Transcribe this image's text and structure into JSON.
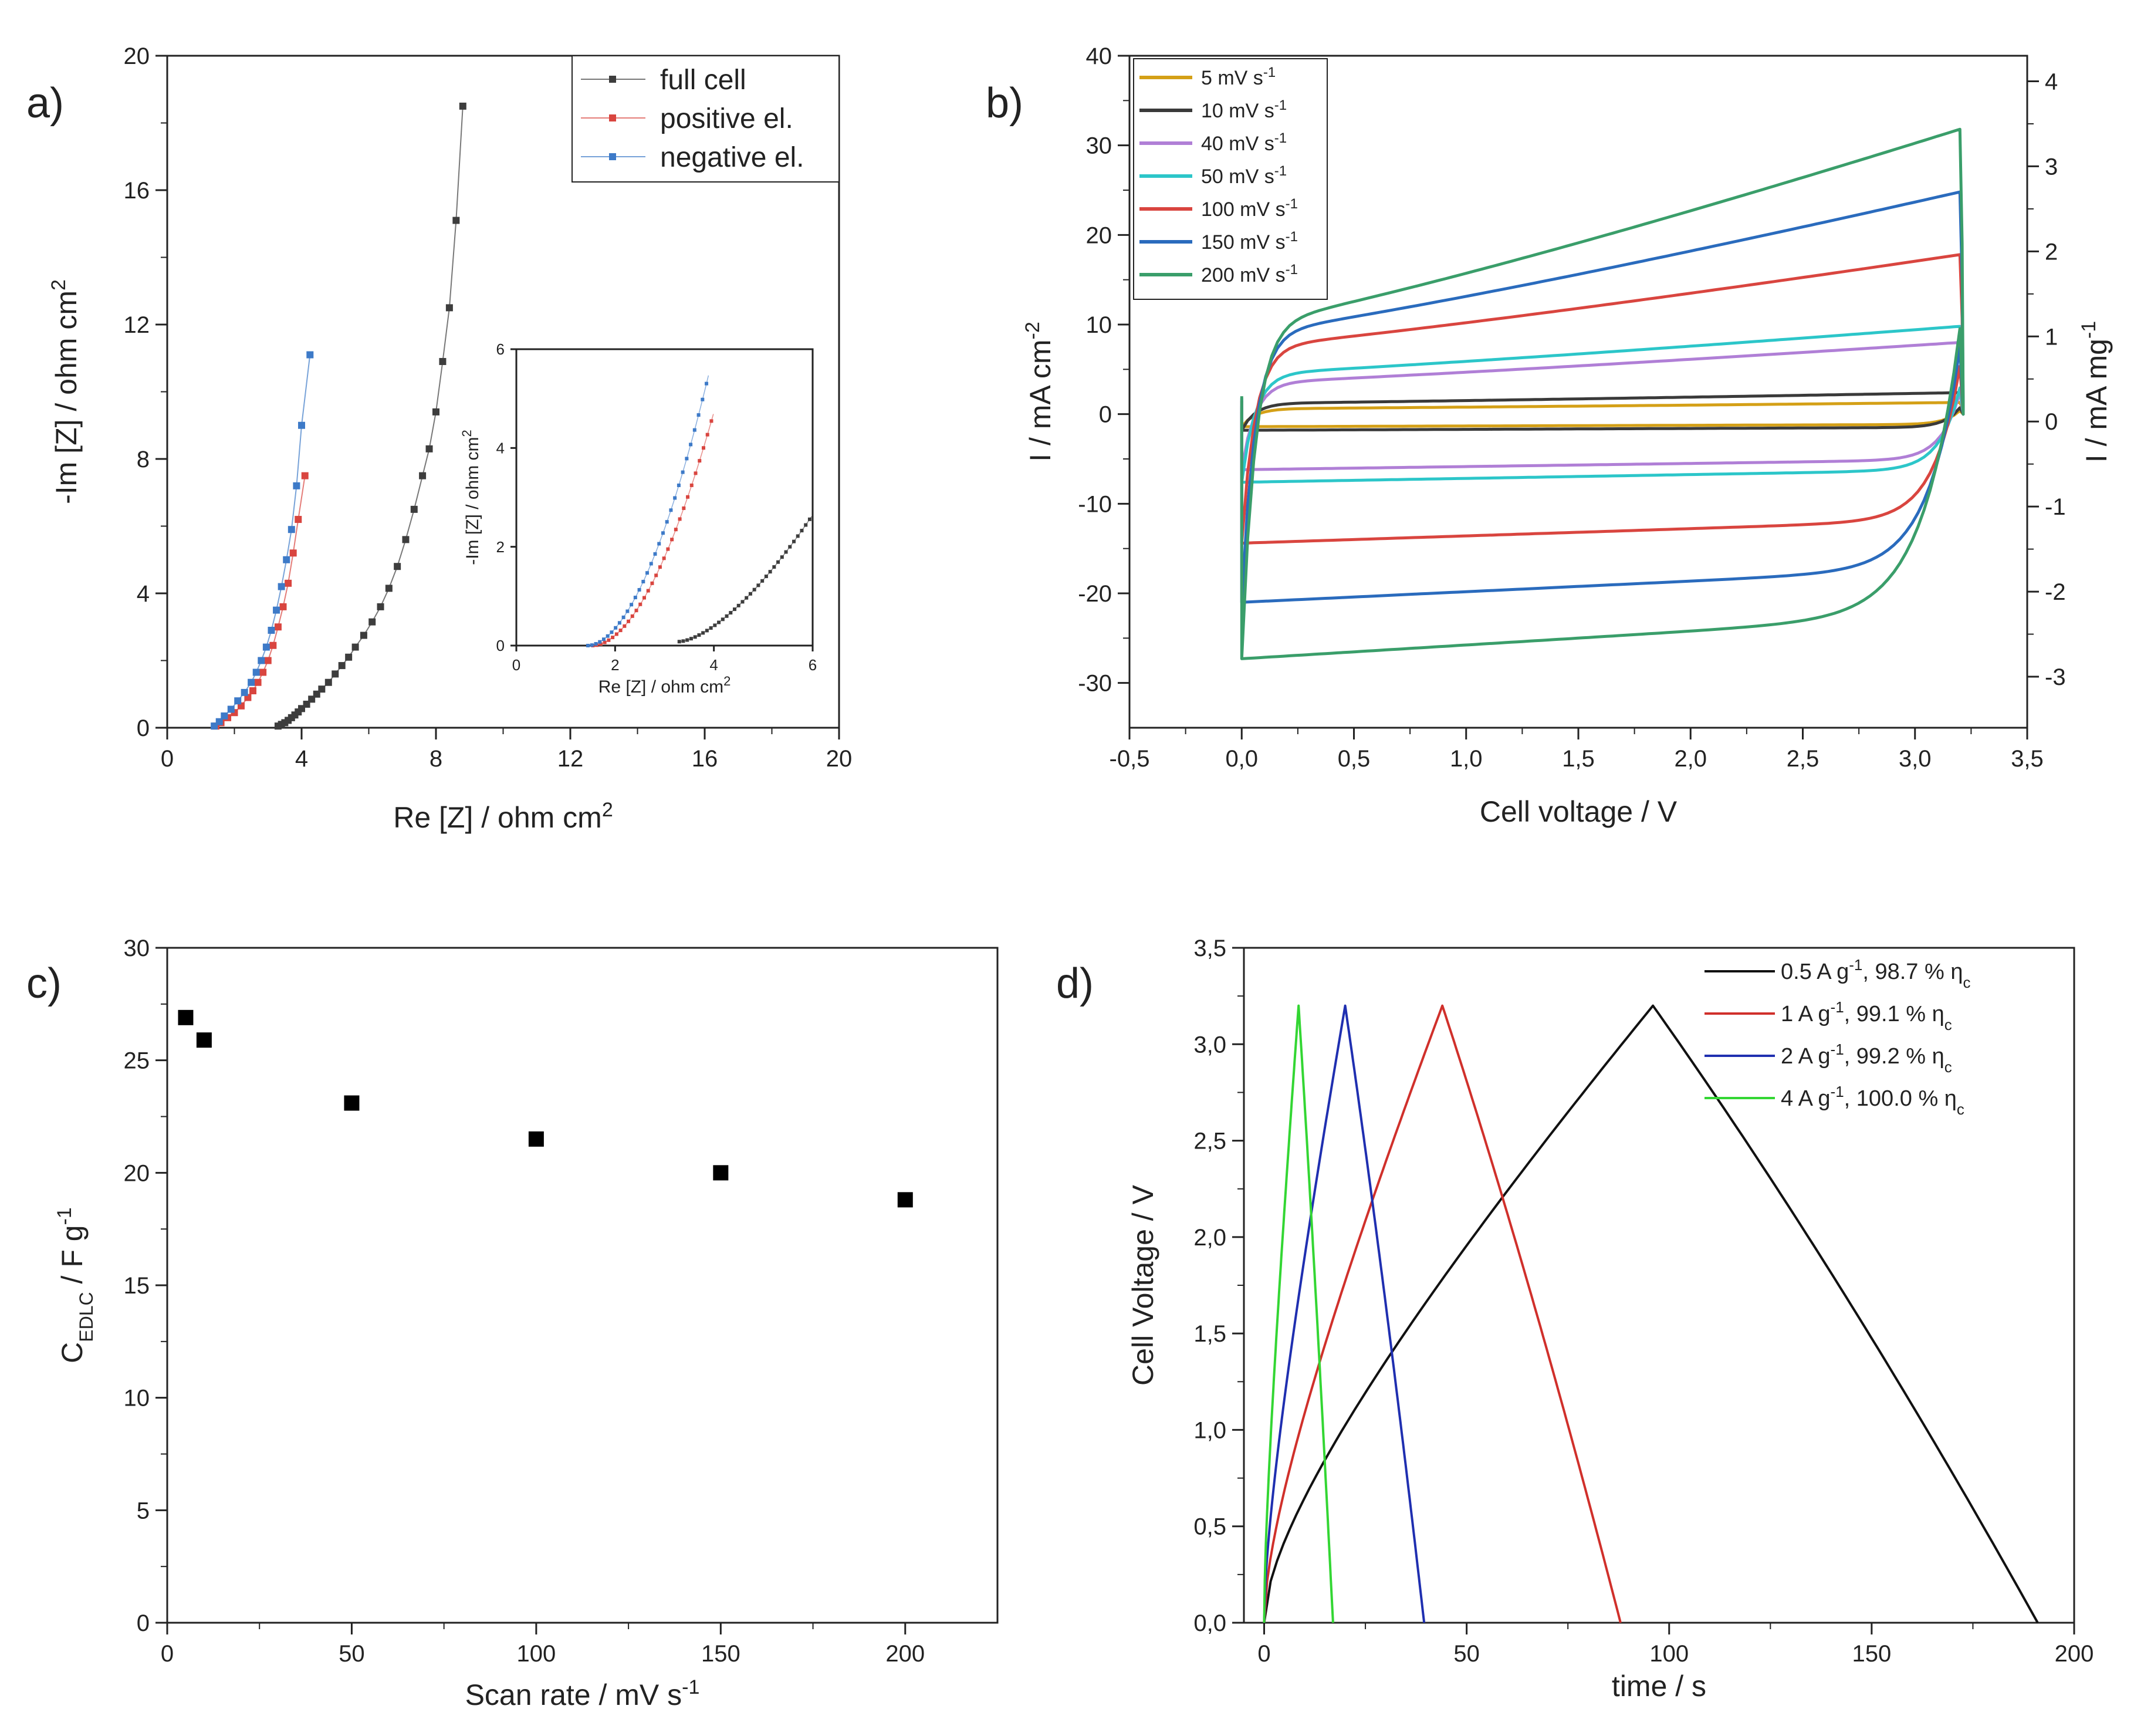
{
  "figure": {
    "panels": [
      {
        "letter": "a)",
        "chart_data": {
          "type": "scatter",
          "xlabel_base": "Re [Z] / ohm cm",
          "xlabel_sup": "2",
          "ylabel_base": "-Im [Z] / ohm cm",
          "ylabel_sup": "2",
          "xlim": [
            0,
            20
          ],
          "ylim": [
            0,
            20
          ],
          "xticks": [
            0,
            4,
            8,
            12,
            16,
            20
          ],
          "yticks": [
            0,
            4,
            8,
            12,
            16,
            20
          ],
          "legend": "top-right",
          "series": [
            {
              "name": "full cell",
              "color": "#3d3d3d",
              "x": [
                3.3,
                3.4,
                3.5,
                3.6,
                3.7,
                3.8,
                3.9,
                4.0,
                4.15,
                4.3,
                4.45,
                4.6,
                4.8,
                5.0,
                5.2,
                5.4,
                5.6,
                5.85,
                6.1,
                6.35,
                6.6,
                6.85,
                7.1,
                7.35,
                7.6,
                7.8,
                8.0,
                8.2,
                8.4,
                8.6,
                8.8
              ],
              "y": [
                0.05,
                0.1,
                0.15,
                0.22,
                0.3,
                0.38,
                0.47,
                0.57,
                0.7,
                0.85,
                1.0,
                1.15,
                1.35,
                1.6,
                1.85,
                2.1,
                2.4,
                2.75,
                3.15,
                3.6,
                4.15,
                4.8,
                5.6,
                6.5,
                7.5,
                8.3,
                9.4,
                10.9,
                12.5,
                15.1,
                18.5
              ]
            },
            {
              "name": "positive el.",
              "color": "#d9453f",
              "x": [
                1.45,
                1.6,
                1.8,
                2.0,
                2.2,
                2.4,
                2.55,
                2.7,
                2.85,
                3.0,
                3.15,
                3.3,
                3.45,
                3.6,
                3.75,
                3.9,
                4.1
              ],
              "y": [
                0.05,
                0.15,
                0.3,
                0.45,
                0.65,
                0.9,
                1.1,
                1.35,
                1.65,
                2.0,
                2.45,
                3.0,
                3.6,
                4.3,
                5.2,
                6.2,
                7.5
              ]
            },
            {
              "name": "negative el.",
              "color": "#3d7ac8",
              "x": [
                1.4,
                1.55,
                1.7,
                1.9,
                2.1,
                2.3,
                2.5,
                2.65,
                2.8,
                2.95,
                3.1,
                3.25,
                3.4,
                3.55,
                3.7,
                3.85,
                4.0,
                4.25
              ],
              "y": [
                0.05,
                0.18,
                0.35,
                0.55,
                0.8,
                1.05,
                1.35,
                1.65,
                2.0,
                2.4,
                2.9,
                3.5,
                4.2,
                5.0,
                5.9,
                7.2,
                9.0,
                11.1
              ]
            }
          ]
        },
        "inset": {
          "xlabel_base": "Re [Z] / ohm cm",
          "xlabel_sup": "2",
          "ylabel_base": "-Im [Z] / ohm cm",
          "ylabel_sup": "2",
          "xlim": [
            0,
            6
          ],
          "ylim": [
            0,
            6
          ],
          "xticks": [
            0,
            2,
            4,
            6
          ],
          "yticks": [
            0,
            2,
            4,
            6
          ]
        }
      },
      {
        "letter": "b)",
        "chart_data": {
          "type": "line",
          "xlabel": "Cell voltage / V",
          "ylabel_base": "I  / mA cm",
          "ylabel_sup": "-2",
          "y2label_base": "I  / mA mg",
          "y2label_sup": "-1",
          "xlim": [
            -0.5,
            3.5
          ],
          "ylim": [
            -35,
            40
          ],
          "y2lim": [
            -3.6,
            4.3
          ],
          "xticks": [
            "-0,5",
            "0,0",
            "0,5",
            "1,0",
            "1,5",
            "2,0",
            "2,5",
            "3,0",
            "3,5"
          ],
          "xtick_values": [
            -0.5,
            0,
            0.5,
            1,
            1.5,
            2,
            2.5,
            3,
            3.5
          ],
          "yticks": [
            "-30",
            "-20",
            "-10",
            "0",
            "10",
            "20",
            "30",
            "40"
          ],
          "ytick_values": [
            -30,
            -20,
            -10,
            0,
            10,
            20,
            30,
            40
          ],
          "y2ticks": [
            "-3",
            "-2",
            "-1",
            "0",
            "1",
            "2",
            "3",
            "4"
          ],
          "y2tick_values": [
            -3,
            -2,
            -1,
            0,
            1,
            2,
            3,
            4
          ],
          "legend": "top-left",
          "series": [
            {
              "name": "5 mV s",
              "sup": "-1",
              "color": "#d4a017",
              "upper_start": 0.6,
              "upper_end": 1.3,
              "lower_flat": -1.4,
              "v_top": 3.2
            },
            {
              "name": "10 mV s",
              "sup": "-1",
              "color": "#3a3a3a",
              "upper_start": 1.2,
              "upper_end": 2.4,
              "lower_flat": -1.8,
              "v_top": 3.2
            },
            {
              "name": "40 mV s",
              "sup": "-1",
              "color": "#b07fd6",
              "upper_start": 3.5,
              "upper_end": 8.0,
              "lower_flat": -6.2,
              "v_top": 3.2
            },
            {
              "name": "50 mV s",
              "sup": "-1",
              "color": "#2cc6c9",
              "upper_start": 4.5,
              "upper_end": 9.8,
              "lower_flat": -7.6,
              "v_top": 3.2
            },
            {
              "name": "100 mV s",
              "sup": "-1",
              "color": "#d9453f",
              "upper_start": 7.5,
              "upper_end": 17.8,
              "lower_flat": -14.4,
              "v_top": 3.2
            },
            {
              "name": "150 mV s",
              "sup": "-1",
              "color": "#2a6bbd",
              "upper_start": 9.0,
              "upper_end": 24.8,
              "lower_flat": -21.0,
              "v_top": 3.2
            },
            {
              "name": "200 mV s",
              "sup": "-1",
              "color": "#3a9e6a",
              "upper_start": 10.0,
              "upper_end": 31.8,
              "lower_flat": -27.3,
              "v_top": 3.2
            }
          ]
        }
      },
      {
        "letter": "c)",
        "chart_data": {
          "type": "scatter",
          "xlabel_base": "Scan rate / mV s",
          "xlabel_sup": "-1",
          "ylabel_c": "C",
          "ylabel_sub": "EDLC",
          "ylabel_rest": " / F g",
          "ylabel_sup": "-1",
          "xlim": [
            0,
            225
          ],
          "ylim": [
            0,
            30
          ],
          "xticks": [
            0,
            50,
            100,
            150,
            200
          ],
          "yticks": [
            0,
            5,
            10,
            15,
            20,
            25,
            30
          ],
          "x": [
            5,
            10,
            50,
            100,
            150,
            200
          ],
          "y": [
            26.9,
            25.9,
            23.1,
            21.5,
            20.0,
            18.8
          ]
        }
      },
      {
        "letter": "d)",
        "chart_data": {
          "type": "line",
          "xlabel": "time / s",
          "ylabel": "Cell Voltage / V",
          "xlim": [
            -5,
            200
          ],
          "ylim": [
            0,
            3.5
          ],
          "xticks": [
            "0",
            "50",
            "100",
            "150",
            "200"
          ],
          "xtick_values": [
            0,
            50,
            100,
            150,
            200
          ],
          "yticks": [
            "0,0",
            "0,5",
            "1,0",
            "1,5",
            "2,0",
            "2,5",
            "3,0",
            "3,5"
          ],
          "ytick_values": [
            0,
            0.5,
            1,
            1.5,
            2,
            2.5,
            3,
            3.5
          ],
          "legend": "top-right",
          "series": [
            {
              "label_a": "0.5 A g",
              "label_sup": "-1",
              "label_b": ", 98.7 % η",
              "label_sub": "c",
              "color": "#111111",
              "t_peak": 96,
              "t_end": 191,
              "v_peak": 3.2
            },
            {
              "label_a": "1 A g",
              "label_sup": "-1",
              "label_b": ",    99.1 % η",
              "label_sub": "c",
              "color": "#d0302b",
              "t_peak": 44,
              "t_end": 88,
              "v_peak": 3.2
            },
            {
              "label_a": "2 A g",
              "label_sup": "-1",
              "label_b": ",    99.2 % η",
              "label_sub": "c",
              "color": "#1f2fb0",
              "t_peak": 20,
              "t_end": 39.5,
              "v_peak": 3.2
            },
            {
              "label_a": "4 A g",
              "label_sup": "-1",
              "label_b": ",  100.0 % η",
              "label_sub": "c",
              "color": "#33d633",
              "t_peak": 8.5,
              "t_end": 17,
              "v_peak": 3.2
            }
          ]
        }
      }
    ]
  }
}
